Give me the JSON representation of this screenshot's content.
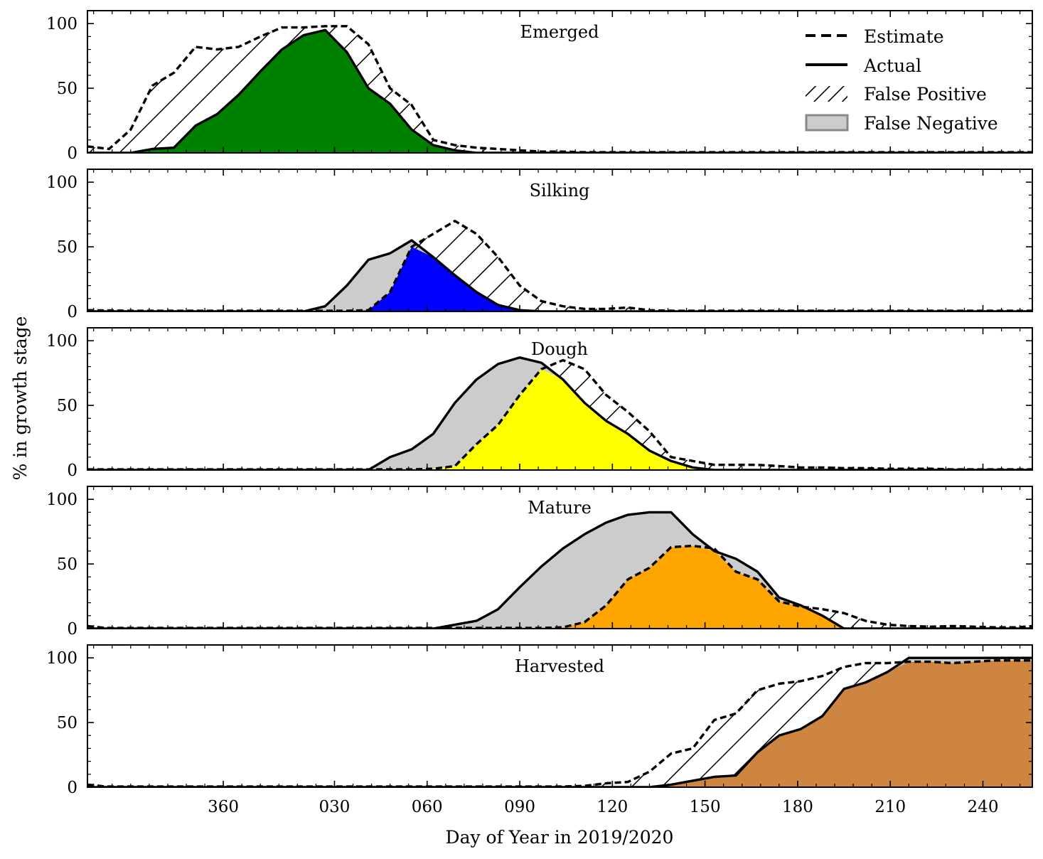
{
  "figure": {
    "ylabel": "% in growth stage",
    "xlabel": "Day of Year in 2019/2020",
    "x_ticks": [
      "360",
      "030",
      "060",
      "090",
      "120",
      "150",
      "180",
      "210",
      "240"
    ],
    "y_ticks": [
      "0",
      "50",
      "100"
    ],
    "legend": {
      "estimate": "Estimate",
      "actual": "Actual",
      "false_positive": "False Positive",
      "false_negative": "False Negative"
    },
    "colors": {
      "false_negative_fill": "#cccccc",
      "line": "#000000"
    }
  },
  "chart_data": {
    "type": "area",
    "x_units": "days relative to Jan 1 2020 (0 = Jan 1)",
    "x_range": [
      -50,
      256
    ],
    "ylim": [
      0,
      110
    ],
    "x_tick_values": [
      -6,
      30,
      60,
      90,
      120,
      150,
      180,
      210,
      240
    ],
    "panels": [
      {
        "title": "Emerged",
        "color": "#008000",
        "estimate_x": [
          -50,
          -43,
          -36,
          -29,
          -22,
          -15,
          -8,
          -1,
          6,
          13,
          20,
          27,
          34,
          41,
          48,
          55,
          62,
          69,
          76,
          83,
          90,
          97,
          104,
          111,
          118,
          125,
          132,
          139,
          146,
          153,
          160,
          167,
          174,
          181,
          188,
          195,
          202,
          209,
          216,
          223,
          230,
          237,
          244,
          251,
          256
        ],
        "estimate": [
          5,
          3,
          18,
          52,
          62,
          82,
          80,
          82,
          90,
          97,
          97,
          98,
          98,
          84,
          50,
          37,
          10,
          6,
          4,
          3,
          2,
          1,
          1,
          0.5,
          0.5,
          0.5,
          0.5,
          0.5,
          0.5,
          0.5,
          0.5,
          0.5,
          0.5,
          0.5,
          0.5,
          0.5,
          0.5,
          0.5,
          0.5,
          0.5,
          0.5,
          0.5,
          0.5,
          0.5,
          0.5
        ],
        "actual_x": [
          -50,
          -36,
          -29,
          -22,
          -15,
          -8,
          -1,
          6,
          13,
          20,
          27,
          34,
          41,
          48,
          55,
          62,
          69,
          76,
          83,
          90,
          97,
          104,
          111,
          118,
          125,
          132,
          139,
          146,
          153,
          160,
          167,
          174,
          181,
          188,
          195,
          202,
          209,
          216,
          223,
          230,
          237,
          244,
          251,
          256
        ],
        "actual": [
          0,
          0,
          3,
          4,
          21,
          30,
          45,
          63,
          80,
          91,
          95,
          78,
          50,
          38,
          18,
          6,
          2,
          0,
          0,
          0,
          0,
          0,
          0,
          0,
          0,
          0,
          0,
          0,
          0,
          0,
          0,
          0,
          0,
          0,
          0,
          0,
          0,
          0,
          0,
          0,
          0,
          0,
          0,
          0
        ]
      },
      {
        "title": "Silking",
        "color": "#0000ff",
        "estimate_x": [
          -50,
          -36,
          -22,
          -8,
          6,
          20,
          34,
          41,
          48,
          55,
          62,
          69,
          76,
          83,
          90,
          97,
          104,
          111,
          118,
          125,
          132,
          139,
          146,
          153,
          160,
          167,
          174,
          181,
          188,
          195,
          202,
          209,
          216,
          223,
          230,
          237,
          244,
          251,
          256
        ],
        "estimate": [
          1,
          0.5,
          0.5,
          0.5,
          0.5,
          0.5,
          0.5,
          1,
          15,
          50,
          60,
          70,
          60,
          42,
          20,
          8,
          4,
          2,
          2,
          3,
          1,
          0.5,
          0.5,
          0.5,
          0.5,
          0.5,
          0.5,
          0.5,
          0.5,
          0.5,
          0.5,
          0.5,
          0.5,
          0.5,
          0.5,
          0.5,
          0.5,
          0.5,
          0.5
        ],
        "actual_x": [
          -50,
          -36,
          -22,
          -8,
          6,
          13,
          20,
          27,
          34,
          41,
          48,
          55,
          62,
          69,
          76,
          83,
          90,
          97,
          104,
          111,
          118,
          125,
          132,
          139,
          146,
          153,
          160,
          167,
          174,
          181,
          188,
          195,
          202,
          209,
          216,
          223,
          230,
          237,
          244,
          251,
          256
        ],
        "actual": [
          0,
          0,
          0,
          0,
          0,
          0,
          0,
          4,
          20,
          40,
          45,
          55,
          42,
          28,
          15,
          5,
          1,
          0,
          0,
          0,
          0,
          0,
          0,
          0,
          0,
          0,
          0,
          0,
          0,
          0,
          0,
          0,
          0,
          0,
          0,
          0,
          0,
          0,
          0,
          0,
          0
        ]
      },
      {
        "title": "Dough",
        "color": "#ffff00",
        "estimate_x": [
          -50,
          -36,
          -22,
          -8,
          6,
          20,
          34,
          48,
          55,
          62,
          69,
          76,
          83,
          90,
          97,
          104,
          111,
          118,
          125,
          132,
          139,
          146,
          153,
          160,
          167,
          174,
          181,
          188,
          195,
          202,
          209,
          216,
          223,
          230,
          237,
          244,
          251,
          256
        ],
        "estimate": [
          0.5,
          0.5,
          0.5,
          0.5,
          0.5,
          0.5,
          0.5,
          0.5,
          0.5,
          1,
          3,
          20,
          35,
          58,
          78,
          85,
          78,
          58,
          45,
          30,
          10,
          7,
          4,
          4,
          4,
          3,
          2,
          2,
          1.5,
          1.5,
          1,
          1,
          1,
          0.5,
          0.5,
          0.5,
          0.5,
          0.5
        ],
        "actual_x": [
          -50,
          -36,
          -22,
          -8,
          6,
          20,
          34,
          41,
          48,
          55,
          62,
          69,
          76,
          83,
          90,
          97,
          104,
          111,
          118,
          125,
          132,
          139,
          146,
          153,
          160,
          167,
          174,
          181,
          188,
          195,
          202,
          209,
          216,
          223,
          230,
          237,
          244,
          251,
          256
        ],
        "actual": [
          0,
          0,
          0,
          0,
          0,
          0,
          0,
          0,
          10,
          16,
          28,
          52,
          70,
          82,
          87,
          83,
          70,
          52,
          38,
          28,
          15,
          7,
          2,
          0,
          0,
          0,
          0,
          0,
          0,
          0,
          0,
          0,
          0,
          0,
          0,
          0,
          0,
          0,
          0
        ]
      },
      {
        "title": "Mature",
        "color": "#ffa500",
        "estimate_x": [
          -50,
          -44,
          -36,
          -22,
          -8,
          6,
          20,
          34,
          48,
          62,
          76,
          90,
          97,
          104,
          111,
          118,
          125,
          132,
          139,
          146,
          153,
          160,
          167,
          174,
          181,
          188,
          195,
          202,
          209,
          216,
          223,
          230,
          237,
          244,
          251,
          256
        ],
        "estimate": [
          2,
          0.5,
          0.5,
          0.5,
          0.5,
          0.5,
          0.5,
          0.5,
          0.5,
          0.5,
          0.5,
          0.5,
          0.5,
          1,
          5,
          18,
          38,
          47,
          63,
          64,
          62,
          44,
          38,
          21,
          17,
          15,
          12,
          6,
          3,
          2,
          1.5,
          2,
          1.5,
          1,
          1,
          2
        ],
        "actual_x": [
          -50,
          -36,
          -22,
          -8,
          6,
          20,
          34,
          48,
          62,
          69,
          76,
          83,
          90,
          97,
          104,
          111,
          118,
          125,
          132,
          139,
          146,
          153,
          160,
          167,
          174,
          181,
          188,
          195,
          202,
          209,
          216,
          223,
          230,
          237,
          244,
          251,
          256
        ],
        "actual": [
          0,
          0,
          0,
          0,
          0,
          0,
          0,
          0,
          0,
          3,
          6,
          15,
          32,
          48,
          62,
          73,
          82,
          88,
          90,
          90,
          73,
          60,
          54,
          44,
          24,
          18,
          10,
          0,
          0,
          0,
          0,
          0,
          0,
          0,
          0,
          0,
          0
        ]
      },
      {
        "title": "Harvested",
        "color": "#cd853f",
        "estimate_x": [
          -50,
          -44,
          -36,
          -22,
          -8,
          6,
          20,
          34,
          48,
          62,
          76,
          90,
          104,
          111,
          118,
          125,
          132,
          139,
          146,
          153,
          160,
          167,
          174,
          181,
          188,
          195,
          202,
          209,
          216,
          223,
          230,
          237,
          244,
          251,
          256
        ],
        "estimate": [
          2,
          0.5,
          0.5,
          0.5,
          0.5,
          0.5,
          0.5,
          0.5,
          0.5,
          0.5,
          0.5,
          0.5,
          0.5,
          1,
          3,
          4,
          12,
          26,
          30,
          52,
          57,
          75,
          80,
          82,
          86,
          93,
          96,
          96,
          97,
          97,
          96,
          97,
          98,
          98,
          98
        ],
        "actual_x": [
          -50,
          -36,
          -22,
          -8,
          6,
          20,
          34,
          48,
          62,
          76,
          90,
          104,
          111,
          118,
          125,
          132,
          139,
          146,
          153,
          160,
          167,
          174,
          181,
          188,
          195,
          202,
          209,
          216,
          223,
          230,
          237,
          244,
          251,
          256
        ],
        "actual": [
          0,
          0,
          0,
          0,
          0,
          0,
          0,
          0,
          0,
          0,
          0,
          0,
          0,
          0,
          0,
          0,
          2,
          5,
          8,
          9,
          27,
          40,
          45,
          55,
          76,
          81,
          89,
          100,
          100,
          100,
          100,
          100,
          100,
          100
        ]
      }
    ]
  }
}
